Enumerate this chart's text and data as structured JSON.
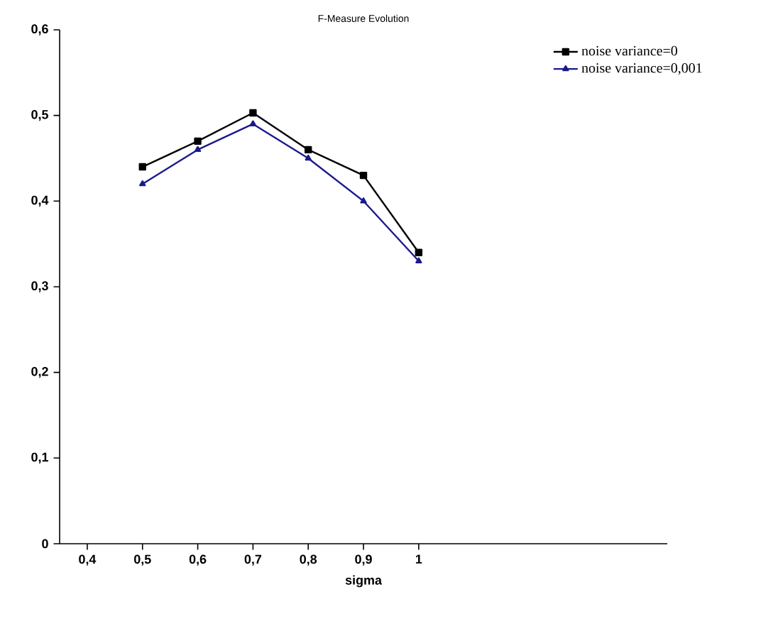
{
  "chart_data": {
    "type": "line",
    "title": "F-Measure Evolution",
    "xlabel": "sigma",
    "xlim": [
      0.35,
      1.45
    ],
    "ylim": [
      0,
      0.6
    ],
    "xticks": [
      {
        "value": 0.4,
        "label": "0,4"
      },
      {
        "value": 0.5,
        "label": "0,5"
      },
      {
        "value": 0.6,
        "label": "0,6"
      },
      {
        "value": 0.7,
        "label": "0,7"
      },
      {
        "value": 0.8,
        "label": "0,8"
      },
      {
        "value": 0.9,
        "label": "0,9"
      },
      1
    ],
    "yticks": [
      0,
      {
        "value": 0.1,
        "label": "0,1"
      },
      {
        "value": 0.2,
        "label": "0,2"
      },
      {
        "value": 0.3,
        "label": "0,3"
      },
      {
        "value": 0.4,
        "label": "0,4"
      },
      {
        "value": 0.5,
        "label": "0,5"
      },
      {
        "value": 0.6,
        "label": "0,6"
      }
    ],
    "x": [
      0.5,
      0.6,
      0.7,
      0.8,
      0.9,
      1.0
    ],
    "series": [
      {
        "name": "noise variance=0",
        "color": "#000000",
        "marker": "square",
        "values": [
          0.44,
          0.47,
          0.503,
          0.46,
          0.43,
          0.34
        ]
      },
      {
        "name": "noise variance=0,001",
        "color": "#1a1a8c",
        "marker": "triangle",
        "values": [
          0.42,
          0.46,
          0.49,
          0.45,
          0.4,
          0.33
        ]
      }
    ],
    "legend": "top right",
    "grid": false,
    "line_style": "solid"
  }
}
